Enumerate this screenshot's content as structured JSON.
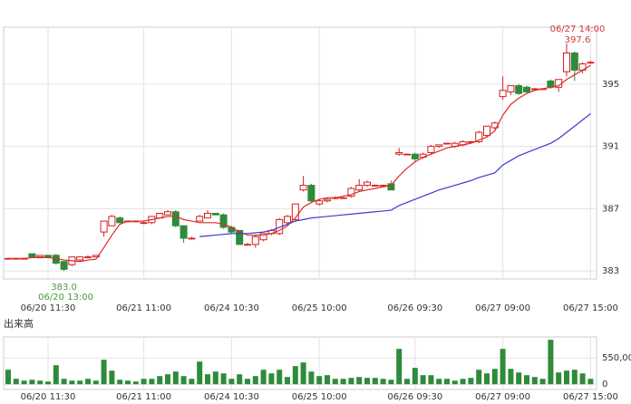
{
  "chart_data": [
    {
      "type": "candlestick",
      "categories": [
        null,
        null,
        null,
        null,
        null,
        "06/20 11:30",
        null,
        null,
        null,
        null,
        null,
        null,
        null,
        null,
        null,
        null,
        null,
        "06/21 11:00",
        null,
        null,
        null,
        null,
        null,
        null,
        null,
        null,
        null,
        null,
        "06/24 10:30",
        null,
        null,
        null,
        null,
        null,
        null,
        null,
        null,
        null,
        null,
        "06/25 10:00",
        null,
        null,
        null,
        null,
        null,
        null,
        null,
        null,
        null,
        null,
        null,
        "06/26 09:30",
        null,
        null,
        null,
        null,
        null,
        null,
        null,
        null,
        null,
        null,
        "06/27 09:00",
        null,
        null,
        null,
        null,
        null,
        null,
        null,
        null,
        null,
        null,
        "06/27 15:00"
      ],
      "open": [
        383.8,
        383.8,
        383.8,
        384.1,
        383.9,
        384.0,
        384.0,
        383.6,
        383.4,
        383.7,
        383.9,
        383.9,
        385.5,
        385.9,
        386.4,
        386.2,
        386.2,
        386.1,
        386.1,
        386.4,
        386.6,
        386.8,
        385.9,
        385.1,
        386.2,
        386.4,
        386.7,
        386.6,
        385.8,
        385.6,
        384.7,
        384.7,
        385.0,
        385.4,
        385.4,
        386.1,
        386.3,
        388.2,
        388.5,
        387.3,
        387.5,
        387.7,
        387.7,
        387.8,
        388.2,
        388.5,
        388.5,
        388.5,
        388.6,
        390.5,
        390.5,
        390.5,
        390.3,
        390.6,
        391.0,
        391.2,
        391.0,
        391.1,
        391.3,
        391.3,
        391.7,
        392.2,
        394.2,
        394.5,
        394.9,
        394.8,
        394.7,
        394.7,
        395.2,
        394.8,
        395.8,
        397.0,
        395.9,
        396.4
      ],
      "high": [
        383.85,
        383.85,
        383.85,
        384.1,
        384.0,
        384.0,
        384.1,
        383.6,
        383.9,
        383.9,
        384.0,
        384.0,
        386.2,
        386.6,
        386.5,
        386.25,
        386.25,
        386.2,
        386.5,
        386.7,
        386.9,
        386.9,
        385.9,
        385.2,
        386.6,
        386.9,
        386.7,
        386.7,
        385.9,
        385.6,
        384.8,
        385.3,
        385.4,
        385.7,
        386.4,
        386.6,
        387.3,
        389.1,
        388.6,
        387.6,
        387.7,
        387.8,
        387.75,
        388.4,
        388.9,
        388.8,
        388.55,
        388.55,
        388.8,
        390.9,
        390.55,
        390.6,
        390.6,
        391.1,
        391.1,
        391.25,
        391.3,
        391.4,
        391.35,
        392.0,
        392.3,
        392.6,
        395.5,
        394.9,
        395.0,
        394.9,
        394.75,
        394.75,
        395.3,
        395.3,
        397.6,
        397.1,
        396.4,
        396.5
      ],
      "low": [
        383.75,
        383.75,
        383.75,
        383.9,
        383.9,
        383.9,
        383.4,
        383.0,
        383.3,
        383.6,
        383.8,
        383.9,
        385.2,
        385.9,
        386.1,
        386.15,
        386.15,
        386.0,
        386.0,
        386.4,
        386.6,
        385.8,
        384.8,
        385.0,
        386.2,
        386.4,
        386.6,
        385.7,
        385.4,
        384.7,
        384.7,
        384.5,
        384.9,
        385.3,
        385.3,
        386.0,
        386.2,
        388.1,
        387.4,
        387.2,
        387.4,
        387.6,
        387.65,
        387.7,
        388.1,
        388.4,
        388.45,
        388.45,
        388.2,
        390.4,
        390.45,
        390.0,
        390.2,
        390.5,
        390.9,
        391.15,
        390.9,
        391.0,
        391.25,
        391.2,
        391.6,
        392.1,
        394.0,
        394.3,
        394.3,
        394.4,
        394.65,
        394.65,
        394.7,
        394.5,
        395.5,
        395.2,
        395.7,
        396.3
      ],
      "close": [
        383.8,
        383.8,
        383.8,
        383.9,
        384.0,
        383.9,
        383.5,
        383.1,
        383.9,
        383.9,
        383.9,
        384.0,
        386.2,
        386.5,
        386.1,
        386.2,
        386.2,
        386.1,
        386.5,
        386.7,
        386.8,
        385.9,
        385.1,
        385.1,
        386.5,
        386.7,
        386.6,
        385.8,
        385.5,
        384.7,
        384.7,
        385.2,
        385.4,
        385.6,
        386.3,
        386.5,
        387.3,
        388.5,
        387.5,
        387.5,
        387.6,
        387.7,
        387.7,
        388.3,
        388.5,
        388.7,
        388.5,
        388.5,
        388.2,
        390.6,
        390.5,
        390.2,
        390.5,
        391.0,
        391.1,
        391.2,
        391.2,
        391.3,
        391.3,
        391.9,
        392.3,
        392.5,
        394.6,
        394.9,
        394.4,
        394.5,
        394.7,
        394.7,
        394.8,
        395.3,
        397.0,
        395.9,
        396.3,
        396.4
      ],
      "up_color": "#d42020",
      "down_color": "#2e8b3a",
      "lines": [
        {
          "color": "#e02a2a",
          "values": [
            383.8,
            383.8,
            383.8,
            383.85,
            383.85,
            383.85,
            383.8,
            383.7,
            383.65,
            383.6,
            383.7,
            383.75,
            384.5,
            385.3,
            386.0,
            386.2,
            386.2,
            386.2,
            386.3,
            386.4,
            386.5,
            386.5,
            386.3,
            386.2,
            386.1,
            386.1,
            386.1,
            386.0,
            385.8,
            385.5,
            385.3,
            385.3,
            385.3,
            385.4,
            385.6,
            385.9,
            386.4,
            387.1,
            387.4,
            387.6,
            387.7,
            387.7,
            387.8,
            387.9,
            388.1,
            388.2,
            388.3,
            388.4,
            388.5,
            389.1,
            389.6,
            390.0,
            390.3,
            390.5,
            390.7,
            390.9,
            391.0,
            391.1,
            391.2,
            391.4,
            391.6,
            392.0,
            393.0,
            393.7,
            394.1,
            394.4,
            394.6,
            394.7,
            394.8,
            394.9,
            395.3,
            395.6,
            395.9,
            396.2
          ]
        },
        {
          "color": "#3a3ad0",
          "values": [
            null,
            null,
            null,
            null,
            null,
            null,
            null,
            null,
            null,
            null,
            null,
            null,
            null,
            null,
            null,
            null,
            null,
            null,
            null,
            null,
            null,
            null,
            null,
            null,
            385.2,
            385.25,
            385.3,
            385.35,
            385.4,
            385.4,
            385.4,
            385.45,
            385.5,
            385.6,
            385.8,
            386.0,
            386.2,
            386.3,
            386.4,
            386.45,
            386.5,
            386.55,
            386.6,
            386.65,
            386.7,
            386.75,
            386.8,
            386.85,
            386.9,
            387.2,
            387.4,
            387.6,
            387.8,
            388.0,
            388.2,
            388.35,
            388.5,
            388.65,
            388.8,
            389.0,
            389.15,
            389.3,
            389.8,
            390.1,
            390.4,
            390.6,
            390.8,
            391.0,
            391.2,
            391.5,
            391.9,
            392.3,
            392.7,
            393.1
          ]
        }
      ],
      "high_mark": {
        "label": "06/27 14:00",
        "value": 397.6,
        "color": "#d43a3a"
      },
      "low_mark": {
        "label": "06/20 13:00",
        "value": 383,
        "value_label": "383.0",
        "color": "#4a9a3a"
      },
      "ylim": [
        382.48,
        398.66
      ],
      "yticks": [
        383,
        387,
        391,
        395
      ],
      "grid": true
    },
    {
      "type": "bar",
      "title": "出来高",
      "categories": [
        null,
        null,
        null,
        null,
        null,
        "06/20 11:30",
        null,
        null,
        null,
        null,
        null,
        null,
        null,
        null,
        null,
        null,
        null,
        "06/21 11:00",
        null,
        null,
        null,
        null,
        null,
        null,
        null,
        null,
        null,
        null,
        "06/24 10:30",
        null,
        null,
        null,
        null,
        null,
        null,
        null,
        null,
        null,
        null,
        "06/25 10:00",
        null,
        null,
        null,
        null,
        null,
        null,
        null,
        null,
        null,
        null,
        null,
        "06/26 09:30",
        null,
        null,
        null,
        null,
        null,
        null,
        null,
        null,
        null,
        null,
        "06/27 09:00",
        null,
        null,
        null,
        null,
        null,
        null,
        null,
        null,
        null,
        null,
        "06/27 15:00"
      ],
      "values": [
        304000,
        114000,
        76000,
        95000,
        76000,
        57000,
        399000,
        114000,
        76000,
        76000,
        114000,
        76000,
        513000,
        285000,
        95000,
        76000,
        57000,
        114000,
        114000,
        171000,
        209000,
        266000,
        171000,
        114000,
        475000,
        209000,
        266000,
        228000,
        114000,
        209000,
        114000,
        171000,
        304000,
        228000,
        304000,
        152000,
        380000,
        456000,
        266000,
        171000,
        190000,
        114000,
        114000,
        133000,
        152000,
        133000,
        133000,
        114000,
        95000,
        741000,
        114000,
        342000,
        190000,
        190000,
        114000,
        114000,
        76000,
        114000,
        133000,
        304000,
        228000,
        323000,
        741000,
        323000,
        247000,
        190000,
        152000,
        114000,
        931000,
        247000,
        285000,
        304000,
        228000,
        114000
      ],
      "color": "#2e8b3a",
      "ylim": [
        -110000,
        990000
      ],
      "yticks": [
        0,
        {
          "value": 550000,
          "label": "550,000"
        }
      ],
      "grid": true
    }
  ]
}
